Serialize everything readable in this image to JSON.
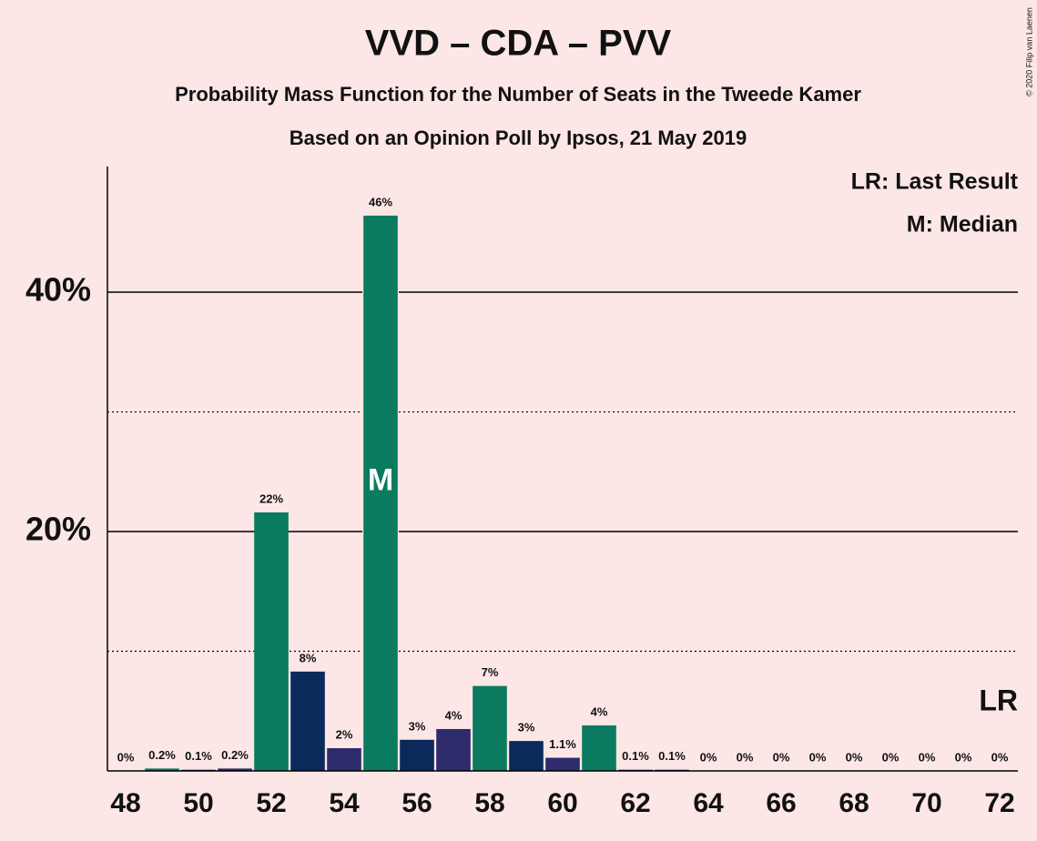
{
  "chart_data": {
    "type": "bar",
    "title": "VVD – CDA – PVV",
    "subtitle": "Probability Mass Function for the Number of Seats in the Tweede Kamer",
    "subtitle2": "Based on an Opinion Poll by Ipsos, 21 May 2019",
    "copyright": "© 2020 Filip van Laenen",
    "legend": [
      "LR: Last Result",
      "M: Median"
    ],
    "median": {
      "label": "M",
      "x": 55
    },
    "last_result": {
      "label": "LR",
      "x": 72
    },
    "xlim": [
      47.5,
      72.5
    ],
    "x": [
      48,
      49,
      50,
      51,
      52,
      53,
      54,
      55,
      56,
      57,
      58,
      59,
      60,
      61,
      62,
      63,
      64,
      65,
      66,
      67,
      68,
      69,
      70,
      71,
      72
    ],
    "xticks": [
      48,
      50,
      52,
      54,
      56,
      58,
      60,
      62,
      64,
      66,
      68,
      70,
      72
    ],
    "values": [
      0,
      0.2,
      0.1,
      0.2,
      21.6,
      8.3,
      1.9,
      46.4,
      2.6,
      3.5,
      7.1,
      2.5,
      1.1,
      3.8,
      0.1,
      0.1,
      0,
      0,
      0,
      0,
      0,
      0,
      0,
      0,
      0
    ],
    "value_labels": [
      "0%",
      "0.2%",
      "0.1%",
      "0.2%",
      "22%",
      "8%",
      "2%",
      "46%",
      "3%",
      "4%",
      "7%",
      "3%",
      "1.1%",
      "4%",
      "0.1%",
      "0.1%",
      "0%",
      "0%",
      "0%",
      "0%",
      "0%",
      "0%",
      "0%",
      "0%",
      "0%"
    ],
    "colors": [
      "#2e2c6c",
      "#0a7b5e",
      "#0b2a5c",
      "#2e2c6c",
      "#0a7b5e",
      "#0b2a5c",
      "#2e2c6c",
      "#0a7b5e",
      "#0b2a5c",
      "#2e2c6c",
      "#0a7b5e",
      "#0b2a5c",
      "#2e2c6c",
      "#0a7b5e",
      "#0b2a5c",
      "#2e2c6c",
      "#0a7b5e",
      "#0b2a5c",
      "#2e2c6c",
      "#0a7b5e",
      "#0b2a5c",
      "#2e2c6c",
      "#0a7b5e",
      "#0b2a5c",
      "#2e2c6c"
    ],
    "ylim": [
      0,
      50.5
    ],
    "yticks": [
      {
        "value": 20,
        "label": "20%"
      },
      {
        "value": 40,
        "label": "40%"
      }
    ],
    "minor_yticks": [
      10,
      30
    ],
    "grid": true
  }
}
